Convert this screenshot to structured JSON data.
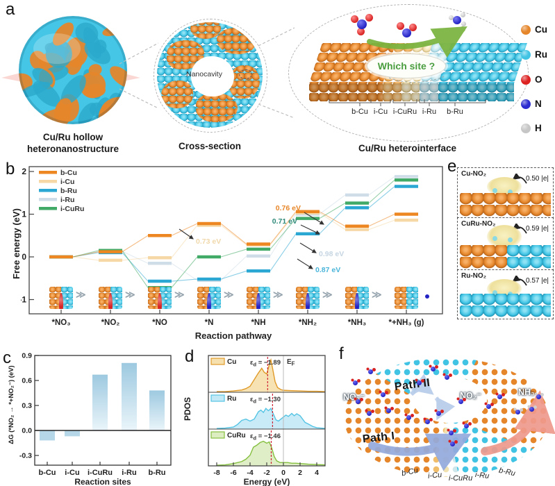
{
  "panels": {
    "a": "a",
    "b": "b",
    "c": "c",
    "d": "d",
    "e": "e",
    "f": "f"
  },
  "icons": {
    "step_arrow": "≫"
  },
  "panel_a": {
    "caption_left_1": "Cu/Ru hollow",
    "caption_left_2": "heteronanostructure",
    "caption_mid": "Cross-section",
    "caption_right": "Cu/Ru heterointerface",
    "nanocavity": "Nanocavity",
    "which_site": "Which site ?",
    "sites": [
      "b-Cu",
      "i-Cu",
      "i-CuRu",
      "i-Ru",
      "b-Ru"
    ],
    "legend": [
      {
        "label": "Cu",
        "color": "#e5862b"
      },
      {
        "label": "Ru",
        "color": "#41c4e4"
      },
      {
        "label": "O",
        "color": "#dd2222"
      },
      {
        "label": "N",
        "color": "#2b2bd0"
      },
      {
        "label": "H",
        "color": "#c6c6c6"
      }
    ]
  },
  "chart_data": [
    {
      "id": "b",
      "type": "line",
      "subtype": "free-energy-diagram",
      "xlabel": "Reaction pathway",
      "ylabel": "Free energy (eV)",
      "categories": [
        "*NO₃",
        "*NO₂",
        "*NO",
        "*N",
        "*NH",
        "*NH₂",
        "*NH₃",
        "*+NH₃ (g)"
      ],
      "ylim": [
        -1.55,
        2.1
      ],
      "yticks": [
        2,
        1,
        0,
        -1
      ],
      "series": [
        {
          "name": "b-Cu",
          "color": "#ed8722",
          "values": [
            0,
            0.12,
            0.5,
            0.78,
            0.3,
            1.06,
            0.72,
            1.0
          ]
        },
        {
          "name": "i-Cu",
          "color": "#f6d8a6",
          "values": [
            0,
            -0.08,
            -0.02,
            0.74,
            0.28,
            1.03,
            0.64,
            0.86
          ]
        },
        {
          "name": "b-Ru",
          "color": "#2ba7d3",
          "values": [
            0,
            0.1,
            -0.57,
            -0.52,
            -0.33,
            0.54,
            1.15,
            1.65
          ]
        },
        {
          "name": "i-Ru",
          "color": "#cfdde8",
          "values": [
            0,
            0.13,
            -0.15,
            -0.55,
            0.02,
            1.0,
            1.45,
            1.88
          ]
        },
        {
          "name": "i-CuRu",
          "color": "#41aa66",
          "values": [
            0,
            0.15,
            -0.72,
            0.0,
            0.18,
            0.9,
            1.26,
            1.8
          ]
        }
      ],
      "annotations": [
        {
          "text": "0.76 eV",
          "color": "#e8872a"
        },
        {
          "text": "0.71 eV",
          "color": "#2f8a7a"
        },
        {
          "text": "0.73 eV",
          "color": "#f0d8ab"
        },
        {
          "text": "0.98 eV",
          "color": "#c6d6e2"
        },
        {
          "text": "0.87 eV",
          "color": "#4ab5da"
        }
      ]
    },
    {
      "id": "c",
      "type": "bar",
      "categories": [
        "b-Cu",
        "i-Cu",
        "i-CuRu",
        "i-Ru",
        "b-Ru"
      ],
      "values": [
        -0.12,
        -0.07,
        0.67,
        0.81,
        0.48
      ],
      "ylabel": "ΔG (*NO₂ → *+NO₂⁻) (eV)",
      "xlabel": "Reaction sites",
      "ylim": [
        -0.45,
        0.95
      ],
      "yticks": [
        0.9,
        0.6,
        0.3,
        0.0,
        -0.3
      ],
      "bar_color_top": "#9dc9e0",
      "bar_color_bottom": "#eaf5fa"
    },
    {
      "id": "d",
      "type": "area",
      "xlabel": "Energy (eV)",
      "ylabel": "PDOS",
      "xlim": [
        -9,
        5
      ],
      "xticks": [
        -8,
        -6,
        -4,
        -2,
        0,
        2,
        4
      ],
      "fermi_label": "EF",
      "series": [
        {
          "name": "Cu",
          "color": "#e09a28",
          "fill": "#f6e0ae",
          "ed": -1.89,
          "points": [
            [
              -8,
              0.02
            ],
            [
              -7,
              0.02
            ],
            [
              -6,
              0.04
            ],
            [
              -5,
              0.07
            ],
            [
              -4.5,
              0.11
            ],
            [
              -4,
              0.18
            ],
            [
              -3.5,
              0.38
            ],
            [
              -3,
              0.58
            ],
            [
              -2.6,
              0.72
            ],
            [
              -2.3,
              0.6
            ],
            [
              -2,
              0.55
            ],
            [
              -1.7,
              0.82
            ],
            [
              -1.5,
              0.97
            ],
            [
              -1.3,
              0.72
            ],
            [
              -1,
              0.32
            ],
            [
              -0.7,
              0.14
            ],
            [
              -0.3,
              0.08
            ],
            [
              0,
              0.06
            ],
            [
              0.8,
              0.05
            ],
            [
              2,
              0.04
            ],
            [
              3,
              0.03
            ],
            [
              4,
              0.03
            ],
            [
              5,
              0.02
            ]
          ]
        },
        {
          "name": "Ru",
          "color": "#55c4e4",
          "fill": "#c3e9f6",
          "ed": -1.3,
          "points": [
            [
              -8,
              0.02
            ],
            [
              -7,
              0.03
            ],
            [
              -6,
              0.06
            ],
            [
              -5.5,
              0.14
            ],
            [
              -5,
              0.26
            ],
            [
              -4.5,
              0.3
            ],
            [
              -4,
              0.24
            ],
            [
              -3.5,
              0.3
            ],
            [
              -3,
              0.52
            ],
            [
              -2.7,
              0.57
            ],
            [
              -2.4,
              0.5
            ],
            [
              -2.1,
              0.62
            ],
            [
              -1.8,
              0.55
            ],
            [
              -1.5,
              0.62
            ],
            [
              -1.2,
              0.45
            ],
            [
              -0.9,
              0.28
            ],
            [
              -0.6,
              0.24
            ],
            [
              -0.3,
              0.3
            ],
            [
              0,
              0.36
            ],
            [
              0.3,
              0.42
            ],
            [
              0.6,
              0.38
            ],
            [
              1,
              0.47
            ],
            [
              1.3,
              0.4
            ],
            [
              1.6,
              0.46
            ],
            [
              2,
              0.4
            ],
            [
              2.3,
              0.3
            ],
            [
              2.6,
              0.2
            ],
            [
              3,
              0.15
            ],
            [
              3.5,
              0.08
            ],
            [
              4,
              0.04
            ],
            [
              5,
              0.02
            ]
          ]
        },
        {
          "name": "CuRu",
          "color": "#84bf3e",
          "fill": "#dcedc2",
          "ed": -1.46,
          "points": [
            [
              -8,
              0.02
            ],
            [
              -7,
              0.03
            ],
            [
              -6,
              0.07
            ],
            [
              -5,
              0.13
            ],
            [
              -4.5,
              0.2
            ],
            [
              -4,
              0.32
            ],
            [
              -3.6,
              0.56
            ],
            [
              -3.2,
              0.62
            ],
            [
              -2.8,
              0.7
            ],
            [
              -2.4,
              0.74
            ],
            [
              -2,
              0.68
            ],
            [
              -1.7,
              0.72
            ],
            [
              -1.4,
              0.54
            ],
            [
              -1.1,
              0.28
            ],
            [
              -0.8,
              0.15
            ],
            [
              -0.4,
              0.1
            ],
            [
              0,
              0.1
            ],
            [
              0.5,
              0.1
            ],
            [
              1,
              0.08
            ],
            [
              1.5,
              0.08
            ],
            [
              2,
              0.07
            ],
            [
              2.5,
              0.06
            ],
            [
              3,
              0.05
            ],
            [
              4,
              0.04
            ],
            [
              5,
              0.03
            ]
          ]
        }
      ]
    }
  ],
  "panel_e": {
    "items": [
      {
        "name": "Cu-NO₂",
        "value": "0.50 |e|",
        "base": "cu"
      },
      {
        "name": "CuRu-NO₂",
        "value": "0.59 |e|",
        "base": "curu"
      },
      {
        "name": "Ru-NO₂",
        "value": "0.57 |e|",
        "base": "ru"
      }
    ]
  },
  "panel_f": {
    "labels": {
      "no3": "NO₃⁻",
      "path2": "Path II",
      "no2": "NO₂⁻",
      "nh3": "NH₃",
      "path1": "Path I"
    },
    "sites": [
      "b-Cu",
      "i-Cu",
      "i-CuRu",
      "i-Ru",
      "b-Ru"
    ]
  }
}
